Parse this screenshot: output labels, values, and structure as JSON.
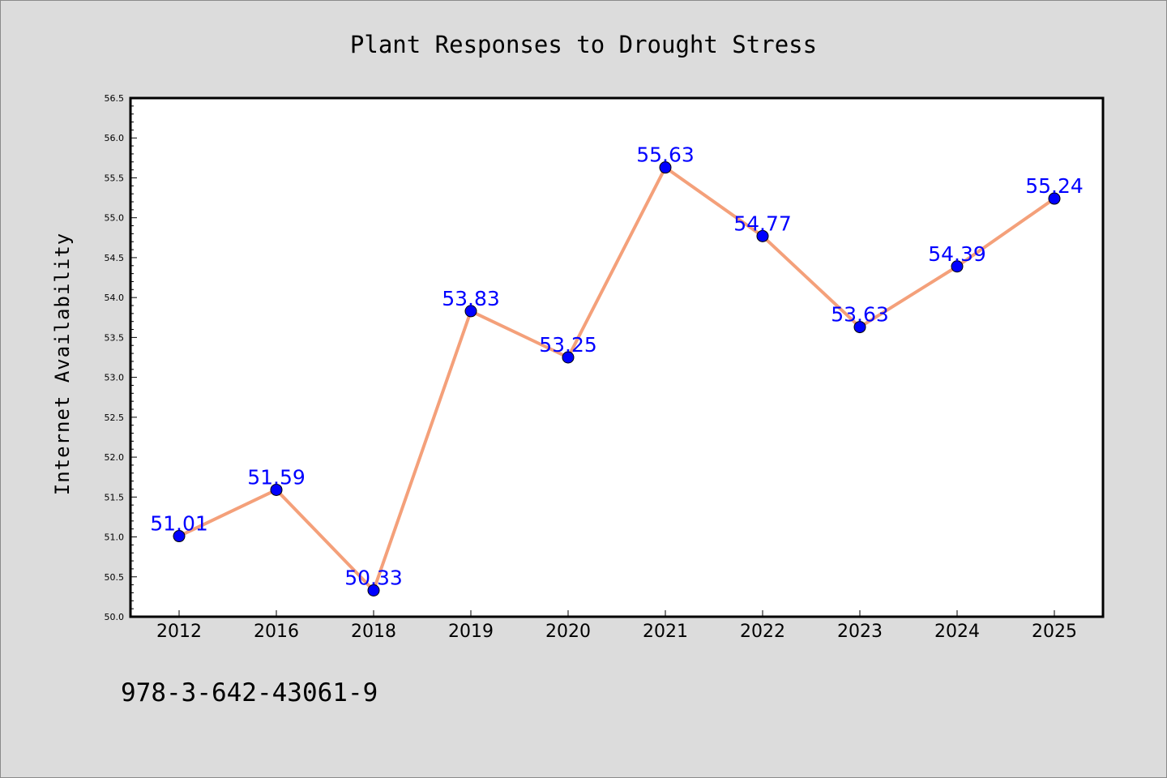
{
  "chart_data": {
    "type": "line",
    "title": "Plant Responses to Drought Stress",
    "xlabel": "",
    "ylabel": "Internet Availability",
    "categories": [
      "2012",
      "2016",
      "2018",
      "2019",
      "2020",
      "2021",
      "2022",
      "2023",
      "2024",
      "2025"
    ],
    "series": [
      {
        "values": [
          51.01,
          51.59,
          50.33,
          53.83,
          53.25,
          55.63,
          54.77,
          53.63,
          54.39,
          55.24
        ],
        "data_labels": [
          "51.01",
          "51.59",
          "50.33",
          "53.83",
          "53.25",
          "55.63",
          "54.77",
          "53.63",
          "54.39",
          "55.24"
        ],
        "line_color": "#f4a07a",
        "marker_color": "#0000ff"
      }
    ],
    "ylim": [
      50.0,
      56.5
    ],
    "yticks": [
      "50.0",
      "50.5",
      "51.0",
      "51.5",
      "52.0",
      "52.5",
      "53.0",
      "53.5",
      "54.0",
      "54.5",
      "55.0",
      "55.5",
      "56.0",
      "56.5"
    ],
    "grid": false,
    "legend": "none",
    "data_label_color": "#0000ff",
    "plot_background": "#ffffff",
    "figure_background": "#dcdcdc"
  },
  "footer": {
    "text": "978-3-642-43061-9"
  }
}
